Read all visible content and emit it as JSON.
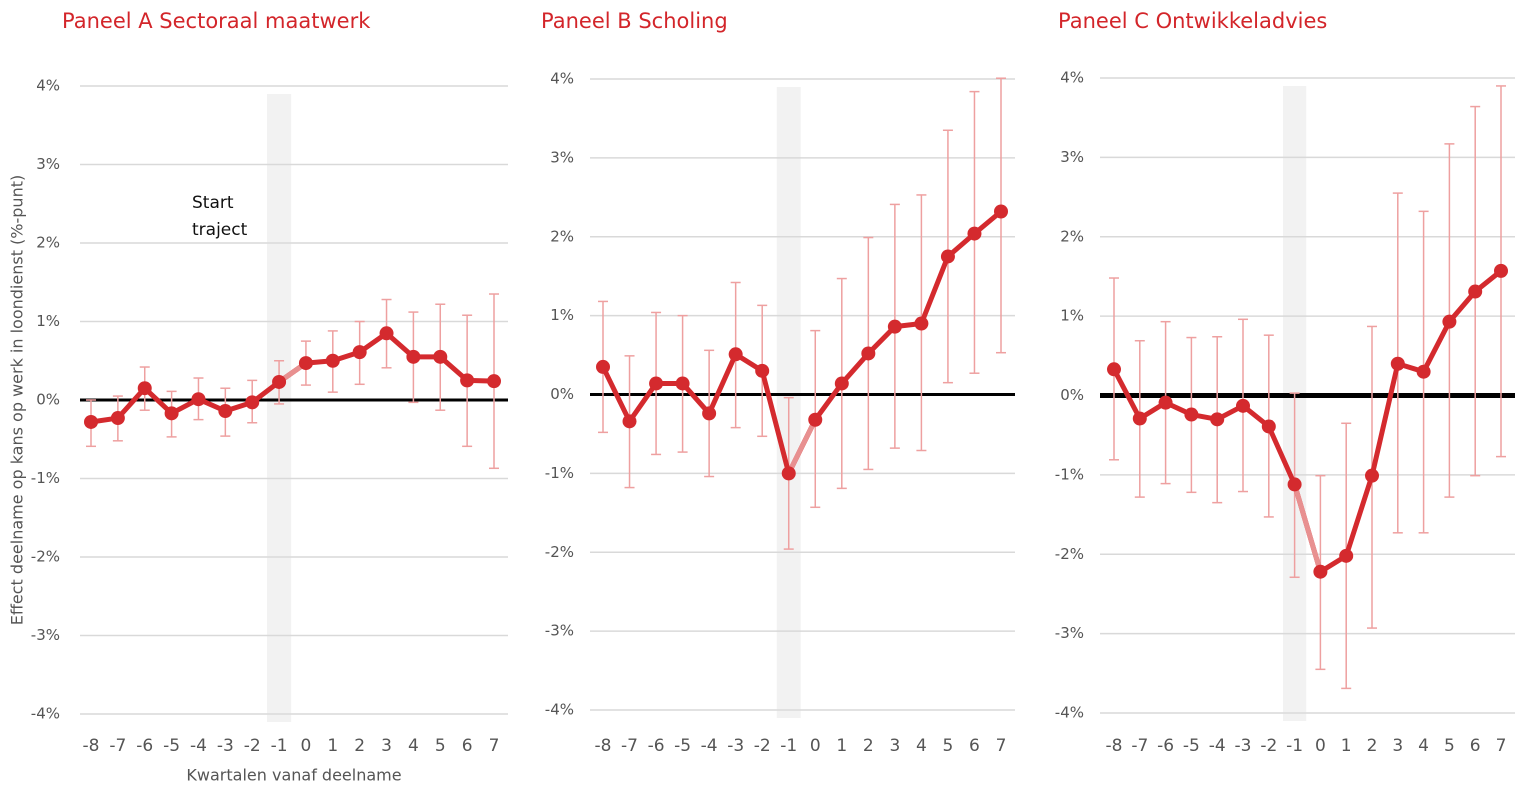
{
  "chart_data": [
    {
      "type": "line",
      "title": "Paneel A Sectoraal maatwerk",
      "ylabel": "Effect deelname op kans op werk in loondienst (%-punt)",
      "xlabel": "Kwartalen vanaf deelname",
      "annotation": [
        "Start",
        "traject"
      ],
      "x": [
        -8,
        -7,
        -6,
        -5,
        -4,
        -3,
        -2,
        -1,
        0,
        1,
        2,
        3,
        4,
        5,
        6,
        7
      ],
      "series": [
        {
          "color": "#d42a2e",
          "values": [
            -0.28,
            -0.23,
            0.15,
            -0.17,
            0.01,
            -0.14,
            -0.03,
            0.23,
            0.47,
            0.5,
            0.61,
            0.85,
            0.55,
            0.55,
            0.25,
            0.24
          ],
          "lower": [
            -0.59,
            -0.52,
            -0.13,
            -0.47,
            -0.25,
            -0.46,
            -0.29,
            -0.05,
            0.19,
            0.1,
            0.2,
            0.41,
            -0.03,
            -0.13,
            -0.59,
            -0.87
          ],
          "upper": [
            0.0,
            0.05,
            0.42,
            0.11,
            0.28,
            0.15,
            0.25,
            0.5,
            0.75,
            0.88,
            1.0,
            1.28,
            1.12,
            1.22,
            1.08,
            1.35
          ]
        }
      ],
      "highlight": -1,
      "ylim": [
        -4,
        4
      ],
      "yticks": [
        {
          "value": -4,
          "label": "-4%"
        },
        {
          "value": -3,
          "label": "-3%"
        },
        {
          "value": -2,
          "label": "-2%"
        },
        {
          "value": -1,
          "label": "-1%"
        },
        {
          "value": 0,
          "label": "0%"
        },
        {
          "value": 1,
          "label": "1%"
        },
        {
          "value": 2,
          "label": "2%"
        },
        {
          "value": 3,
          "label": "3%"
        },
        {
          "value": 4,
          "label": "4%"
        }
      ],
      "grid": true
    },
    {
      "type": "line",
      "title": "Paneel B Scholing",
      "x": [
        -8,
        -7,
        -6,
        -5,
        -4,
        -3,
        -2,
        -1,
        0,
        1,
        2,
        3,
        4,
        5,
        6,
        7
      ],
      "series": [
        {
          "color": "#d42a2e",
          "values": [
            0.35,
            -0.34,
            0.14,
            0.14,
            -0.24,
            0.51,
            0.3,
            -1.0,
            -0.32,
            0.14,
            0.52,
            0.86,
            0.9,
            1.75,
            2.04,
            2.32
          ],
          "lower": [
            -0.48,
            -1.18,
            -0.76,
            -0.73,
            -1.04,
            -0.42,
            -0.53,
            -1.96,
            -1.43,
            -1.19,
            -0.95,
            -0.68,
            -0.71,
            0.15,
            0.27,
            0.53
          ],
          "upper": [
            1.18,
            0.49,
            1.04,
            1.0,
            0.56,
            1.42,
            1.13,
            -0.04,
            0.81,
            1.47,
            1.99,
            2.41,
            2.53,
            3.35,
            3.84,
            4.01
          ]
        }
      ],
      "highlight": -1,
      "ylim": [
        -4,
        4
      ],
      "yticks": [
        {
          "value": -4,
          "label": "-4%"
        },
        {
          "value": -3,
          "label": "-3%"
        },
        {
          "value": -2,
          "label": "-2%"
        },
        {
          "value": -1,
          "label": "-1%"
        },
        {
          "value": 0,
          "label": "0%"
        },
        {
          "value": 1,
          "label": "1%"
        },
        {
          "value": 2,
          "label": "2%"
        },
        {
          "value": 3,
          "label": "3%"
        },
        {
          "value": 4,
          "label": "4%"
        }
      ],
      "grid": true
    },
    {
      "type": "line",
      "title": "Paneel C Ontwikkeladvies",
      "x": [
        -8,
        -7,
        -6,
        -5,
        -4,
        -3,
        -2,
        -1,
        0,
        1,
        2,
        3,
        4,
        5,
        6,
        7
      ],
      "series": [
        {
          "color": "#d42a2e",
          "values": [
            0.33,
            -0.29,
            -0.09,
            -0.24,
            -0.3,
            -0.13,
            -0.39,
            -1.12,
            -2.22,
            -2.02,
            -1.01,
            0.4,
            0.3,
            0.93,
            1.31,
            1.57
          ],
          "lower": [
            -0.81,
            -1.28,
            -1.11,
            -1.22,
            -1.35,
            -1.21,
            -1.53,
            -2.29,
            -3.45,
            -3.69,
            -2.93,
            -1.73,
            -1.73,
            -1.28,
            -1.01,
            -0.77
          ],
          "upper": [
            1.48,
            0.69,
            0.93,
            0.73,
            0.74,
            0.96,
            0.76,
            0.03,
            -1.01,
            -0.35,
            0.87,
            2.55,
            2.32,
            3.17,
            3.64,
            3.9
          ]
        }
      ],
      "highlight": -1,
      "ylim": [
        -4,
        4
      ],
      "yticks": [
        {
          "value": -4,
          "label": "-4%"
        },
        {
          "value": -3,
          "label": "-3%"
        },
        {
          "value": -2,
          "label": "-2%"
        },
        {
          "value": -1,
          "label": "-1%"
        },
        {
          "value": 0,
          "label": "0%"
        },
        {
          "value": 1,
          "label": "1%"
        },
        {
          "value": 2,
          "label": "2%"
        },
        {
          "value": 3,
          "label": "3%"
        },
        {
          "value": 4,
          "label": "4%"
        }
      ],
      "grid": true
    }
  ]
}
